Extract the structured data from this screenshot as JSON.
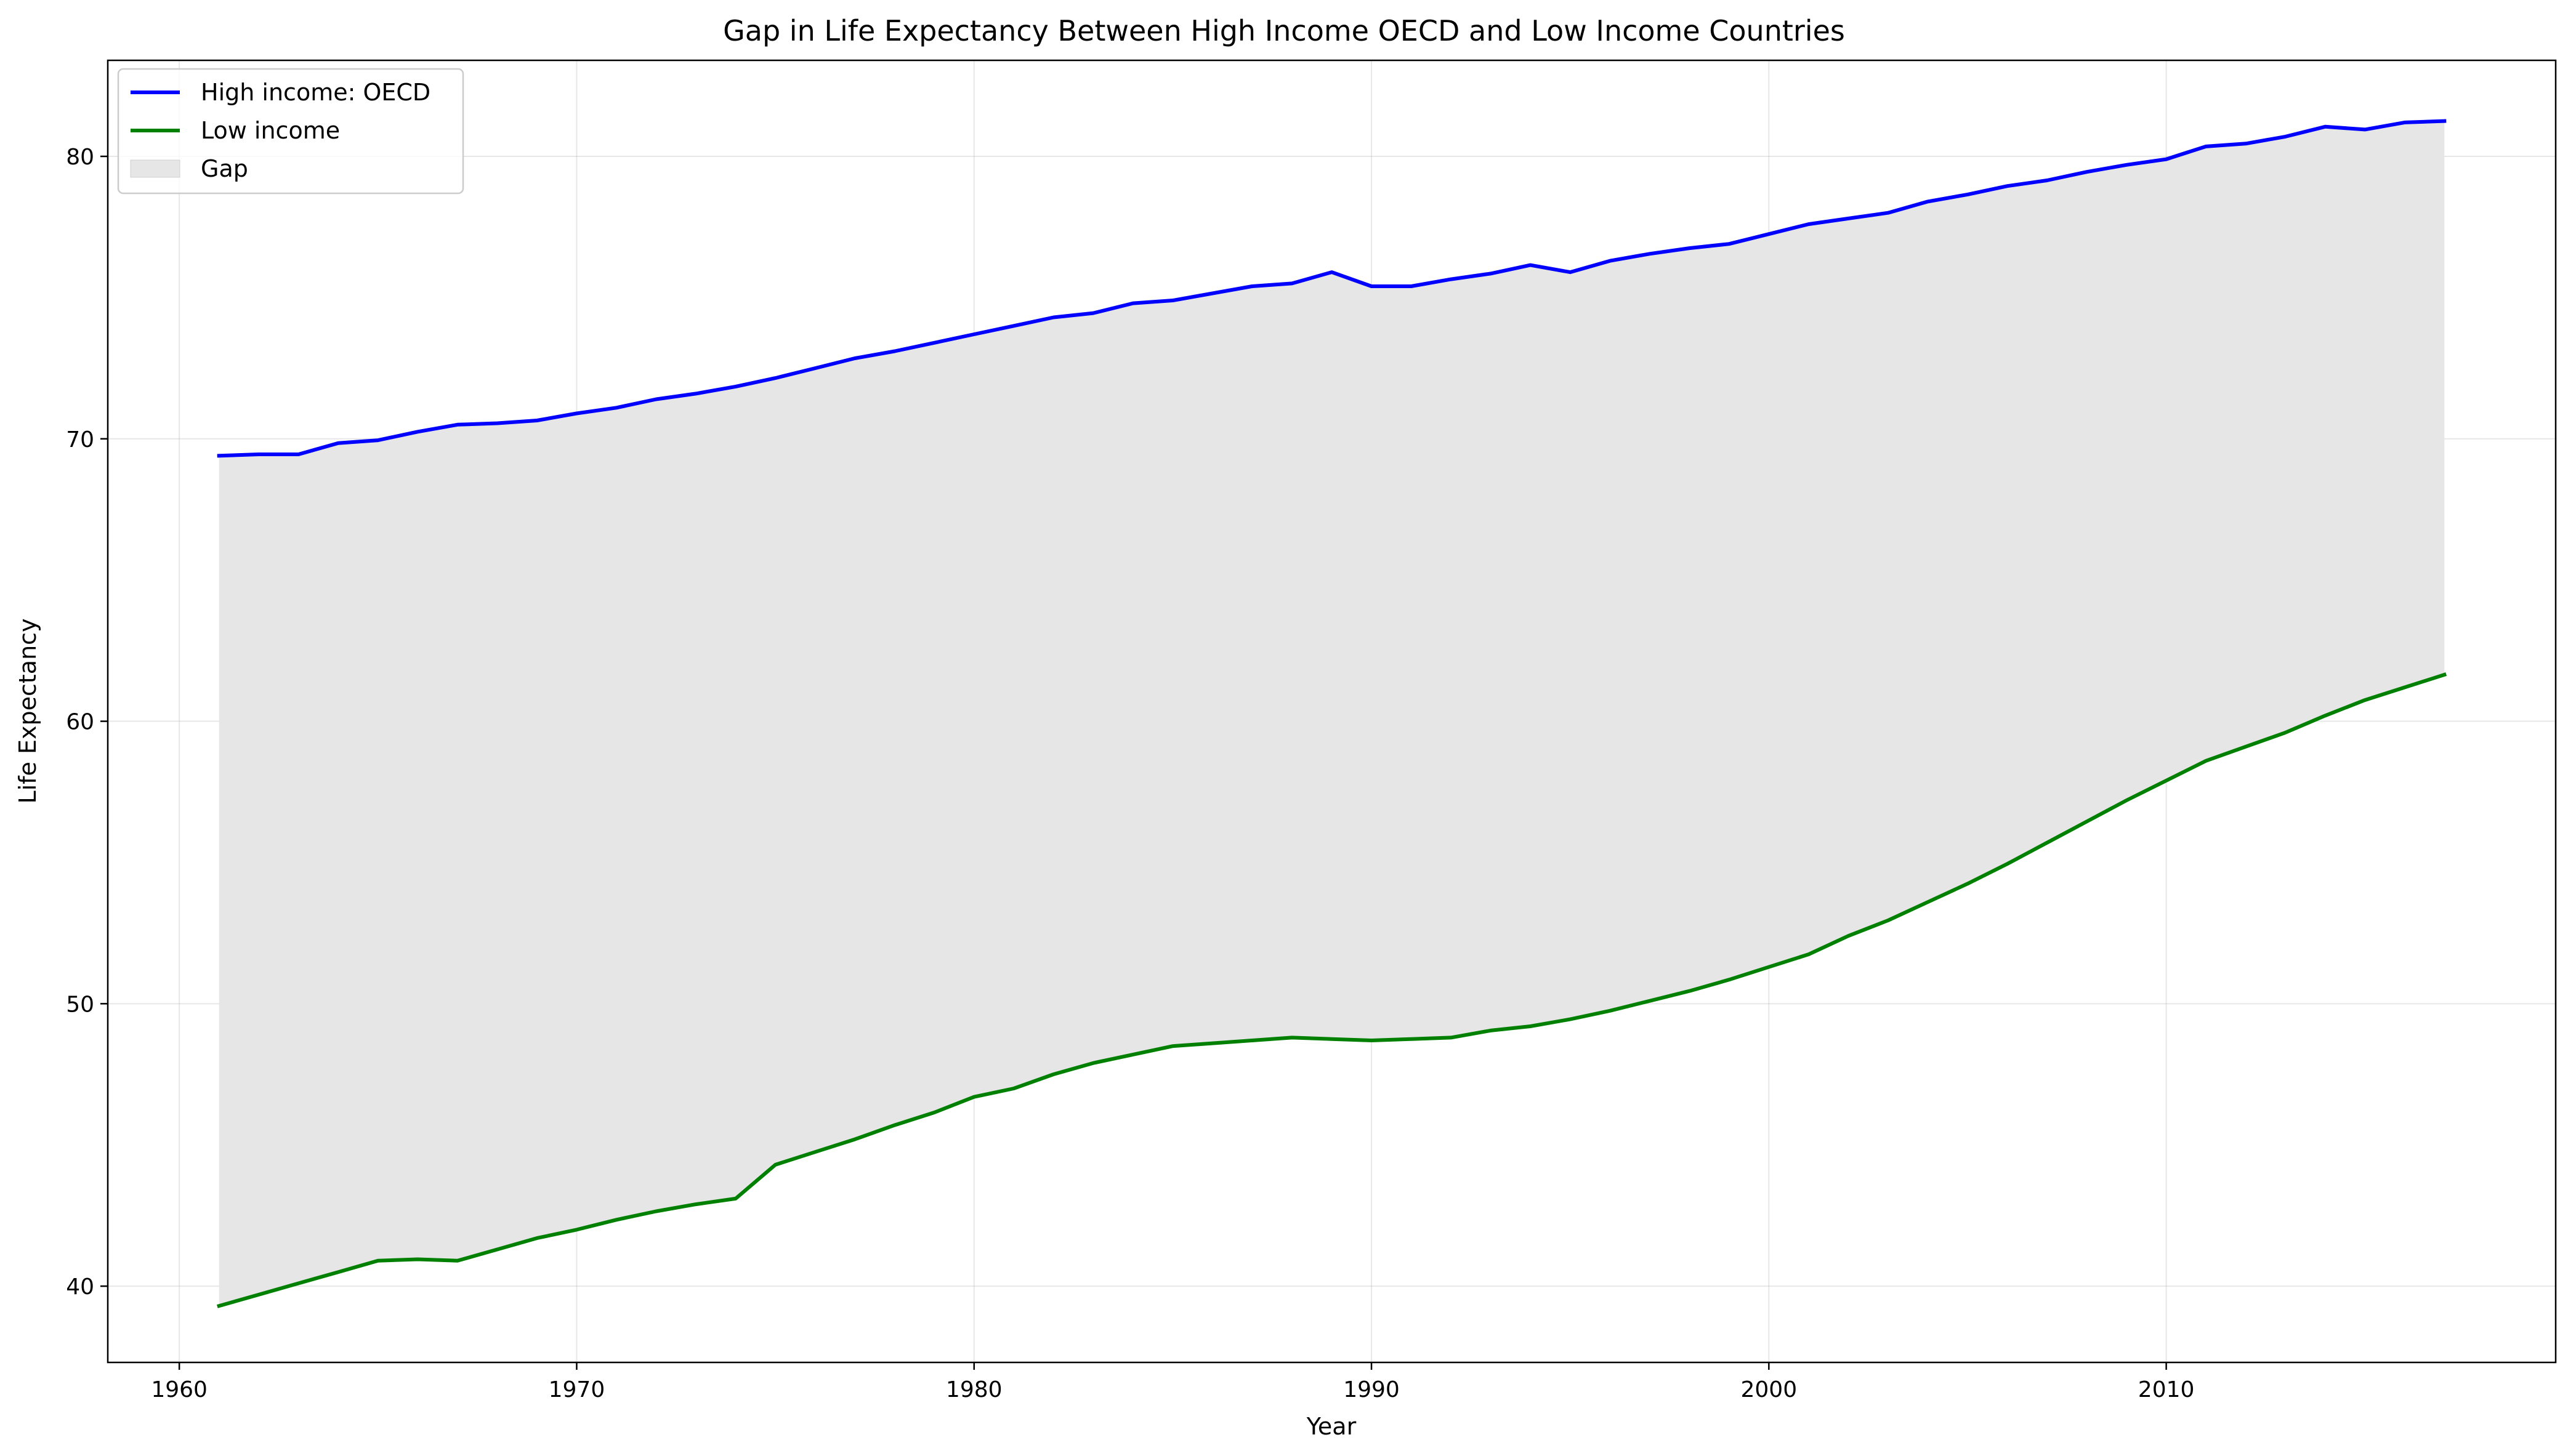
{
  "chart_data": {
    "type": "line",
    "title": "Gap in Life Expectancy Between High Income OECD and Low Income Countries",
    "xlabel": "Year",
    "ylabel": "Life Expectancy",
    "xlim": [
      1958.2,
      2019.8
    ],
    "ylim": [
      37.3,
      83.4
    ],
    "xticks": [
      1960,
      1970,
      1980,
      1990,
      2000,
      2010
    ],
    "yticks": [
      40,
      50,
      60,
      70,
      80
    ],
    "grid": true,
    "legend_position": "top-left",
    "x": [
      1961,
      1962,
      1963,
      1964,
      1965,
      1966,
      1967,
      1968,
      1969,
      1970,
      1971,
      1972,
      1973,
      1974,
      1975,
      1976,
      1977,
      1978,
      1979,
      1980,
      1981,
      1982,
      1983,
      1984,
      1985,
      1986,
      1987,
      1988,
      1989,
      1990,
      1991,
      1992,
      1993,
      1994,
      1995,
      1996,
      1997,
      1998,
      1999,
      2000,
      2001,
      2002,
      2003,
      2004,
      2005,
      2006,
      2007,
      2008,
      2009,
      2010,
      2011,
      2012,
      2013,
      2014,
      2015,
      2016,
      2017
    ],
    "series": [
      {
        "name": "High income: OECD",
        "color": "#0000ff",
        "values": [
          69.4,
          69.45,
          69.45,
          69.85,
          69.95,
          70.25,
          70.5,
          70.55,
          70.65,
          70.9,
          71.1,
          71.4,
          71.6,
          71.85,
          72.15,
          72.5,
          72.85,
          73.1,
          73.4,
          73.7,
          74.0,
          74.3,
          74.45,
          74.8,
          74.9,
          75.15,
          75.4,
          75.5,
          75.9,
          75.4,
          75.4,
          75.65,
          75.85,
          76.15,
          75.9,
          76.3,
          76.55,
          76.75,
          76.9,
          77.25,
          77.6,
          77.8,
          78.0,
          78.4,
          78.65,
          78.95,
          79.15,
          79.45,
          79.7,
          79.9,
          80.35,
          80.45,
          80.7,
          81.05,
          80.95,
          81.2,
          81.25
        ]
      },
      {
        "name": "Low income",
        "color": "#008000",
        "values": [
          39.3,
          39.7,
          40.1,
          40.5,
          40.9,
          40.95,
          40.9,
          41.3,
          41.7,
          42.0,
          42.35,
          42.65,
          42.9,
          43.1,
          44.3,
          44.75,
          45.2,
          45.7,
          46.15,
          46.7,
          47.0,
          47.5,
          47.9,
          48.2,
          48.5,
          48.6,
          48.7,
          48.8,
          48.75,
          48.7,
          48.75,
          48.8,
          49.05,
          49.2,
          49.45,
          49.75,
          50.1,
          50.45,
          50.85,
          51.3,
          51.75,
          52.4,
          52.95,
          53.6,
          54.25,
          54.95,
          55.7,
          56.45,
          57.2,
          57.9,
          58.6,
          59.1,
          59.6,
          60.2,
          60.75,
          61.2,
          61.65
        ]
      }
    ],
    "fill_between": {
      "name": "Gap",
      "color": "#e6e6e6"
    }
  }
}
